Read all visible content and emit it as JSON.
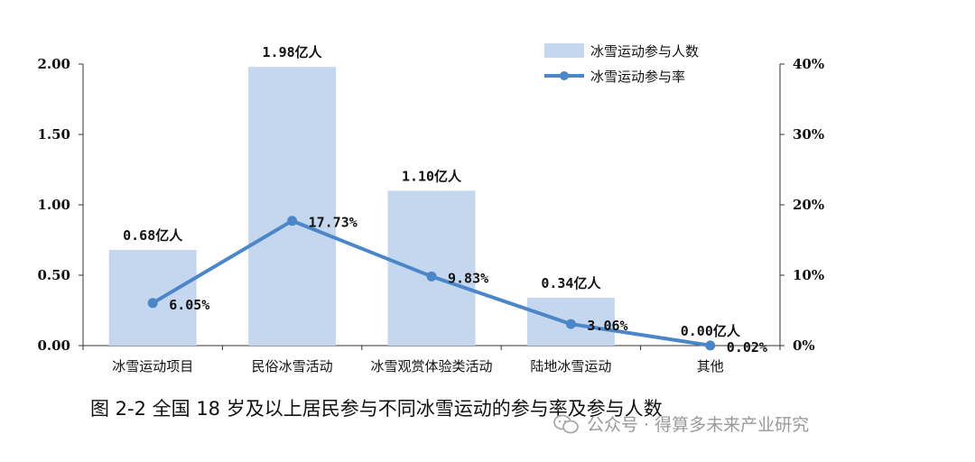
{
  "chart_data": {
    "type": "bar",
    "categories": [
      "冰雪运动项目",
      "民俗冰雪活动",
      "冰雪观赏体验类活动",
      "陆地冰雪运动",
      "其他"
    ],
    "series": [
      {
        "name": "冰雪运动参与人数",
        "kind": "bar",
        "axis": "left",
        "values": [
          0.68,
          1.98,
          1.1,
          0.34,
          0.0
        ],
        "labels": [
          "0.68亿人",
          "1.98亿人",
          "1.10亿人",
          "0.34亿人",
          "0.00亿人"
        ],
        "color": "#c5d7ee"
      },
      {
        "name": "冰雪运动参与率",
        "kind": "line",
        "axis": "right",
        "values": [
          6.05,
          17.73,
          9.83,
          3.06,
          0.02
        ],
        "labels": [
          "6.05%",
          "17.73%",
          "9.83%",
          "3.06%",
          "0.02%"
        ],
        "color": "#4a86c8"
      }
    ],
    "ylim": [
      0,
      2.0
    ],
    "y_ticks": [
      "0.00",
      "0.50",
      "1.00",
      "1.50",
      "2.00"
    ],
    "y2lim": [
      0,
      40
    ],
    "y2_ticks": [
      "0%",
      "10%",
      "20%",
      "30%",
      "40%"
    ],
    "legend_position": "top-right",
    "grid": false
  },
  "caption": "图 2-2  全国 18 岁及以上居民参与不同冰雪运动的参与率及参与人数",
  "watermark": "公众号 · 得算多未来产业研究"
}
